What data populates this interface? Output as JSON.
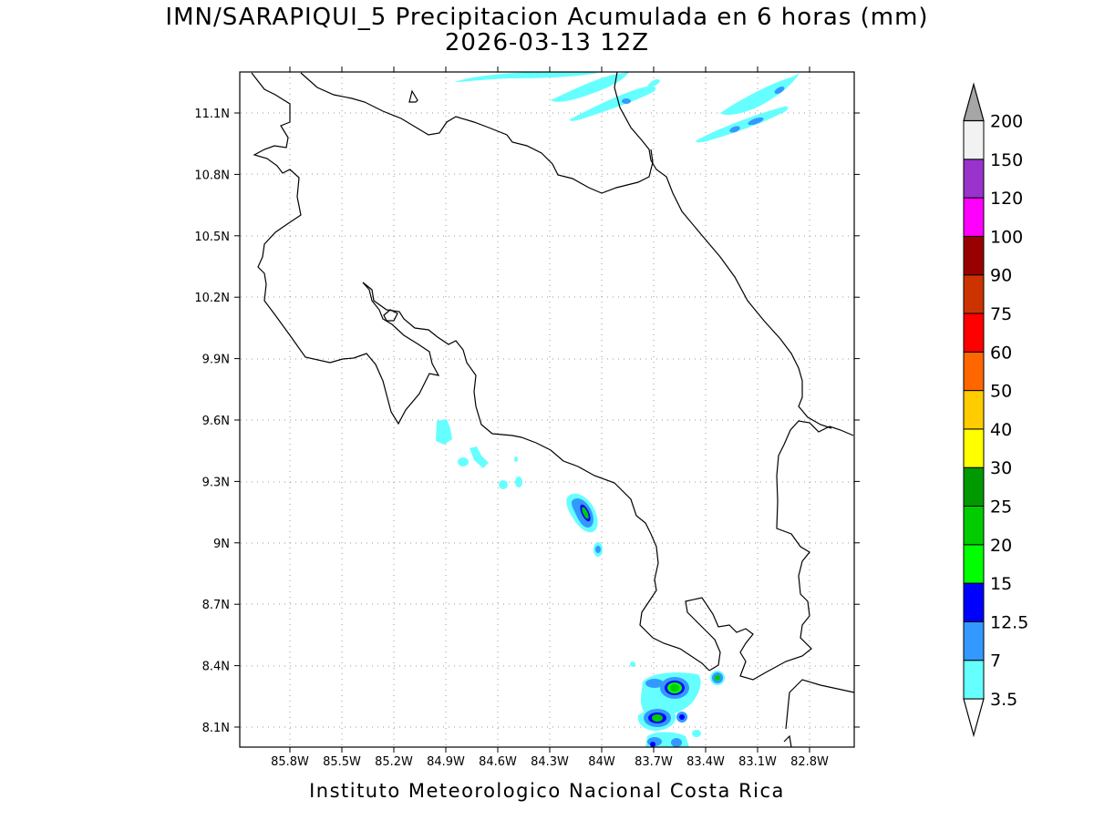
{
  "title": "IMN/SARAPIQUI_5 Precipitacion Acumulada en 6 horas (mm)",
  "subtitle": "2026-03-13 12Z",
  "footer": "Instituto Meteorologico Nacional Costa Rica",
  "x_ticks": [
    "85.8W",
    "85.5W",
    "85.2W",
    "84.9W",
    "84.6W",
    "84.3W",
    "84W",
    "83.7W",
    "83.4W",
    "83.1W",
    "82.8W"
  ],
  "y_ticks": [
    "11.1N",
    "10.8N",
    "10.5N",
    "10.2N",
    "9.9N",
    "9.6N",
    "9.3N",
    "9N",
    "8.7N",
    "8.4N",
    "8.1N"
  ],
  "legend": {
    "labels": [
      "3.5",
      "7",
      "12.5",
      "15",
      "20",
      "25",
      "30",
      "40",
      "50",
      "60",
      "75",
      "90",
      "100",
      "120",
      "150",
      "200"
    ],
    "colors": [
      "#66ffff",
      "#3399ff",
      "#0000ff",
      "#00ff00",
      "#00cc00",
      "#009900",
      "#ffff00",
      "#ffcc00",
      "#ff6600",
      "#ff0000",
      "#cc3300",
      "#990000",
      "#ff00ff",
      "#9933cc",
      "#f2f2f2",
      "#a6a6a6"
    ]
  }
}
